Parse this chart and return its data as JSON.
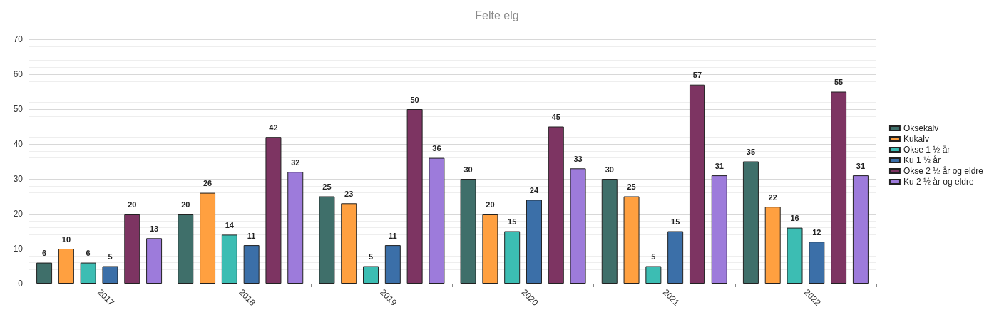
{
  "chart_data": {
    "type": "bar",
    "title": "Felte elg",
    "categories": [
      "2017",
      "2018",
      "2019",
      "2020",
      "2021",
      "2022"
    ],
    "series": [
      {
        "name": "Oksekalv",
        "color": "#3f6f6a",
        "values": [
          6,
          20,
          25,
          30,
          30,
          35
        ]
      },
      {
        "name": "Kukalv",
        "color": "#ffa040",
        "values": [
          10,
          26,
          23,
          20,
          25,
          22
        ]
      },
      {
        "name": "Okse 1 ½ år",
        "color": "#3cbdb3",
        "values": [
          6,
          14,
          5,
          15,
          5,
          16
        ]
      },
      {
        "name": "Ku 1 ½ år",
        "color": "#3b6fa8",
        "values": [
          5,
          11,
          11,
          24,
          15,
          12
        ]
      },
      {
        "name": "Okse 2 ½ år og eldre",
        "color": "#7d3462",
        "values": [
          20,
          42,
          50,
          45,
          57,
          55
        ]
      },
      {
        "name": "Ku 2 ½ år og eldre",
        "color": "#9d7bdb",
        "values": [
          13,
          32,
          36,
          33,
          31,
          31
        ]
      }
    ],
    "ylim": [
      0,
      70
    ],
    "yticks": [
      0,
      10,
      20,
      30,
      40,
      50,
      60,
      70
    ],
    "grid": "y",
    "legend": "right",
    "data_labels": true
  }
}
